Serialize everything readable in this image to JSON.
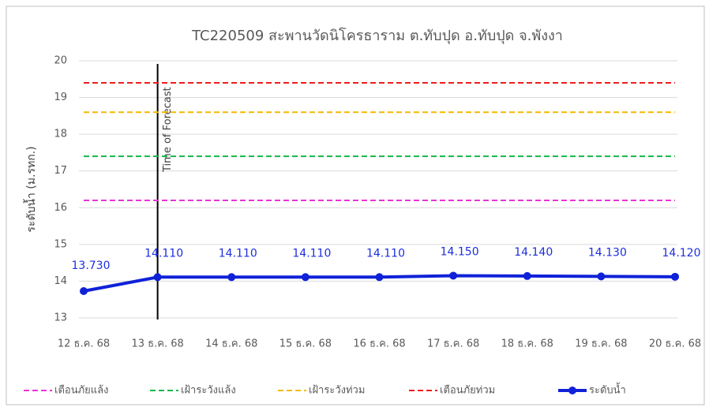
{
  "chart_data": {
    "type": "line",
    "title": "TC220509 สะพานวัดนิโครธาราม ต.ทับปุด อ.ทับปุด จ.พังงา",
    "ylabel": "ระดับน้ำ (ม.รทก.)",
    "categories": [
      "12 ธ.ค. 68",
      "13 ธ.ค. 68",
      "14 ธ.ค. 68",
      "15 ธ.ค. 68",
      "16 ธ.ค. 68",
      "17 ธ.ค. 68",
      "18 ธ.ค. 68",
      "19 ธ.ค. 68",
      "20 ธ.ค. 68"
    ],
    "ylim": [
      13,
      20
    ],
    "yticks": [
      13,
      14,
      15,
      16,
      17,
      18,
      19,
      20
    ],
    "grid": true,
    "legend": "bottom",
    "annotations": [
      {
        "label": "Time of Forecast",
        "x": "13 ธ.ค. 68"
      }
    ],
    "series": [
      {
        "name": "เตือนภัยแล้ง",
        "color": "#e833d6",
        "style": "dashed",
        "values": [
          16.2,
          16.2,
          16.2,
          16.2,
          16.2,
          16.2,
          16.2,
          16.2,
          16.2
        ]
      },
      {
        "name": "เฝ้าระวังแล้ง",
        "color": "#14b84a",
        "style": "dashed",
        "values": [
          17.4,
          17.4,
          17.4,
          17.4,
          17.4,
          17.4,
          17.4,
          17.4,
          17.4
        ]
      },
      {
        "name": "เฝ้าระวังท่วม",
        "color": "#f5b800",
        "style": "dashed",
        "values": [
          18.6,
          18.6,
          18.6,
          18.6,
          18.6,
          18.6,
          18.6,
          18.6,
          18.6
        ]
      },
      {
        "name": "เตือนภัยท่วม",
        "color": "#ee1c1c",
        "style": "dashed",
        "values": [
          19.4,
          19.4,
          19.4,
          19.4,
          19.4,
          19.4,
          19.4,
          19.4,
          19.4
        ]
      },
      {
        "name": "ระดับน้ำ",
        "color": "#0f22d8",
        "style": "solid",
        "markers": true,
        "values": [
          13.73,
          14.11,
          14.11,
          14.11,
          14.11,
          14.15,
          14.14,
          14.13,
          14.12
        ],
        "value_labels": [
          "13.730",
          "14.110",
          "14.110",
          "14.110",
          "14.110",
          "14.150",
          "14.140",
          "14.130",
          "14.120"
        ]
      }
    ]
  }
}
